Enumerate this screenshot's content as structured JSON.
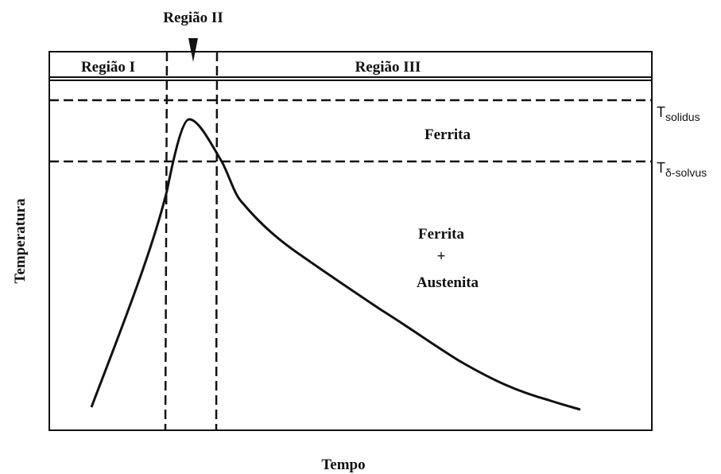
{
  "regions": {
    "region_1": "Região I",
    "region_2": "Região II",
    "region_3": "Região III"
  },
  "levels": {
    "solidus": {
      "symbol": "T",
      "subscript": "solidus"
    },
    "delta_solvus": {
      "symbol": "T",
      "subscript": "δ-solvus"
    }
  },
  "phases": {
    "upper": "Ferrita",
    "lower_1": "Ferrita",
    "lower_2": "+",
    "lower_3": "Austenita"
  },
  "axes": {
    "y_label": "Temperatura",
    "x_label": "Tempo"
  }
}
